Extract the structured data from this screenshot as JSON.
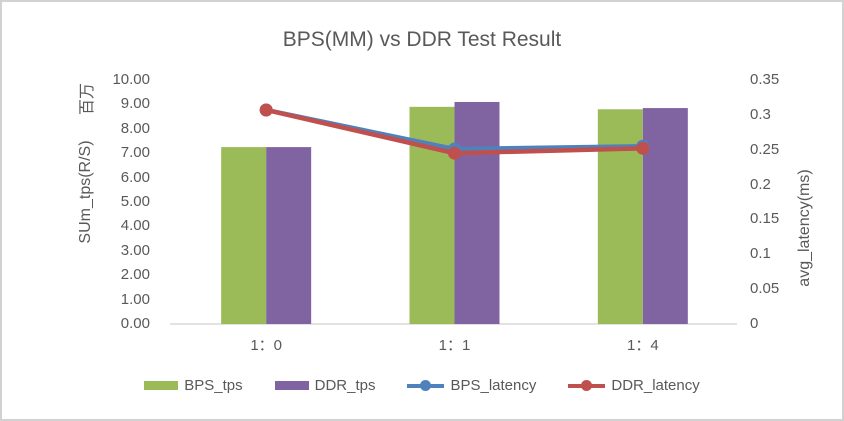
{
  "window": {
    "background": "#ffffff",
    "border_color": "#d2d2d2"
  },
  "chart_data": {
    "type": "bar",
    "subtype": "combo-bar-line-dual-axis",
    "title": "BPS(MM) vs DDR Test Result",
    "categories": [
      "1：0",
      "1：1",
      "1：4"
    ],
    "series": [
      {
        "name": "BPS_tps",
        "kind": "bar",
        "axis": "left",
        "color": "#9BBB59",
        "values": [
          7.25,
          8.9,
          8.8
        ]
      },
      {
        "name": "DDR_tps",
        "kind": "bar",
        "axis": "left",
        "color": "#8064A2",
        "values": [
          7.25,
          9.1,
          8.85
        ]
      },
      {
        "name": "BPS_latency",
        "kind": "line",
        "axis": "right",
        "color": "#4F81BD",
        "values": [
          0.307,
          0.251,
          0.255
        ]
      },
      {
        "name": "DDR_latency",
        "kind": "line",
        "axis": "right",
        "color": "#C0504D",
        "values": [
          0.307,
          0.245,
          0.252
        ]
      }
    ],
    "left_axis": {
      "title": "SUm_tps(R/S)",
      "units_label": "百万",
      "min": 0,
      "max": 10,
      "ticks": [
        "10.00",
        "9.00",
        "8.00",
        "7.00",
        "6.00",
        "5.00",
        "4.00",
        "3.00",
        "2.00",
        "1.00",
        "0.00"
      ]
    },
    "right_axis": {
      "title": "avg_latency(ms)",
      "min": 0,
      "max": 0.35,
      "ticks": [
        "0.35",
        "0.3",
        "0.25",
        "0.2",
        "0.15",
        "0.1",
        "0.05",
        "0"
      ]
    },
    "legend": {
      "position": "bottom"
    },
    "grid": false,
    "text_color": "#595959",
    "axis_line_color": "#D9D9D9"
  }
}
